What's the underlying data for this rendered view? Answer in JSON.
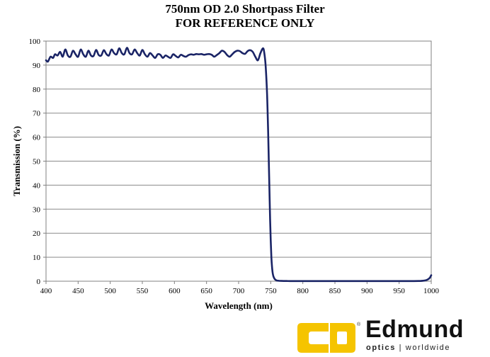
{
  "header": {
    "title_line1": "750nm OD 2.0 Shortpass Filter",
    "title_line2": "FOR REFERENCE ONLY"
  },
  "logo": {
    "brand": "Edmund",
    "tagline_bold": "optics",
    "tagline_sep": " | ",
    "tagline_rest": "worldwide",
    "colors": {
      "mark": "#F5C400",
      "text": "#111111"
    }
  },
  "chart_data": {
    "type": "line",
    "title": "750nm OD 2.0 Shortpass Filter",
    "subtitle": "FOR REFERENCE ONLY",
    "xlabel": "Wavelength (nm)",
    "ylabel": "Transmission (%)",
    "xlim": [
      400,
      1000
    ],
    "ylim": [
      0,
      100
    ],
    "xticks": [
      400,
      450,
      500,
      550,
      600,
      650,
      700,
      750,
      800,
      850,
      900,
      950,
      1000
    ],
    "yticks": [
      0,
      10,
      20,
      30,
      40,
      50,
      60,
      70,
      80,
      90,
      100
    ],
    "grid": "horizontal",
    "line_color": "#1A2466",
    "series": [
      {
        "x": [
          400,
          403,
          407,
          411,
          414,
          418,
          422,
          426,
          430,
          434,
          438,
          442,
          446,
          450,
          454,
          458,
          462,
          466,
          470,
          474,
          478,
          482,
          486,
          490,
          494,
          498,
          502,
          506,
          510,
          514,
          518,
          522,
          526,
          530,
          534,
          538,
          542,
          546,
          550,
          554,
          558,
          562,
          566,
          570,
          574,
          578,
          582,
          586,
          590,
          594,
          598,
          602,
          606,
          610,
          614,
          618,
          622,
          626,
          630,
          634,
          638,
          642,
          646,
          650,
          654,
          658,
          662,
          666,
          670,
          674,
          678,
          682,
          686,
          690,
          694,
          698,
          702,
          706,
          710,
          714,
          718,
          722,
          726,
          730,
          734,
          738,
          740,
          742,
          744,
          745,
          746,
          747,
          748,
          749,
          750,
          751,
          752,
          753,
          754,
          755,
          756,
          757,
          758,
          759,
          760,
          762,
          764,
          767,
          770,
          775,
          780,
          790,
          800,
          850,
          900,
          950,
          980,
          990,
          995,
          998,
          1000
        ],
        "y": [
          92,
          91.5,
          93.5,
          93,
          94.5,
          94,
          95.5,
          93.5,
          96.5,
          94,
          93.5,
          96,
          94.5,
          93.5,
          96.5,
          94.5,
          93.5,
          96,
          94,
          93.8,
          96.3,
          94.2,
          94,
          96.2,
          94.6,
          94,
          96.5,
          95,
          94.5,
          97,
          95,
          94.5,
          97.2,
          95,
          94.5,
          96.5,
          95,
          94,
          96.3,
          94.5,
          93.5,
          95,
          94,
          93,
          94.5,
          94.3,
          93,
          94,
          93.5,
          93,
          94.5,
          93.8,
          93.2,
          94.3,
          93.8,
          93.5,
          94.2,
          94.5,
          94.3,
          94.6,
          94.5,
          94.6,
          94.3,
          94.5,
          94.6,
          94.3,
          93.5,
          94.2,
          95,
          96,
          95.5,
          94.2,
          93.5,
          94.5,
          95.5,
          96,
          95.8,
          95,
          94.7,
          95.8,
          96.2,
          95.5,
          93.5,
          92,
          95,
          97,
          95,
          90,
          80,
          72,
          62,
          50,
          38,
          26,
          17,
          10,
          6,
          3.5,
          2.2,
          1.5,
          1,
          0.7,
          0.5,
          0.35,
          0.25,
          0.2,
          0.15,
          0.12,
          0.1,
          0.08,
          0.06,
          0.05,
          0.05,
          0.05,
          0.05,
          0.05,
          0.08,
          0.3,
          0.8,
          1.5,
          2.5
        ]
      }
    ]
  }
}
